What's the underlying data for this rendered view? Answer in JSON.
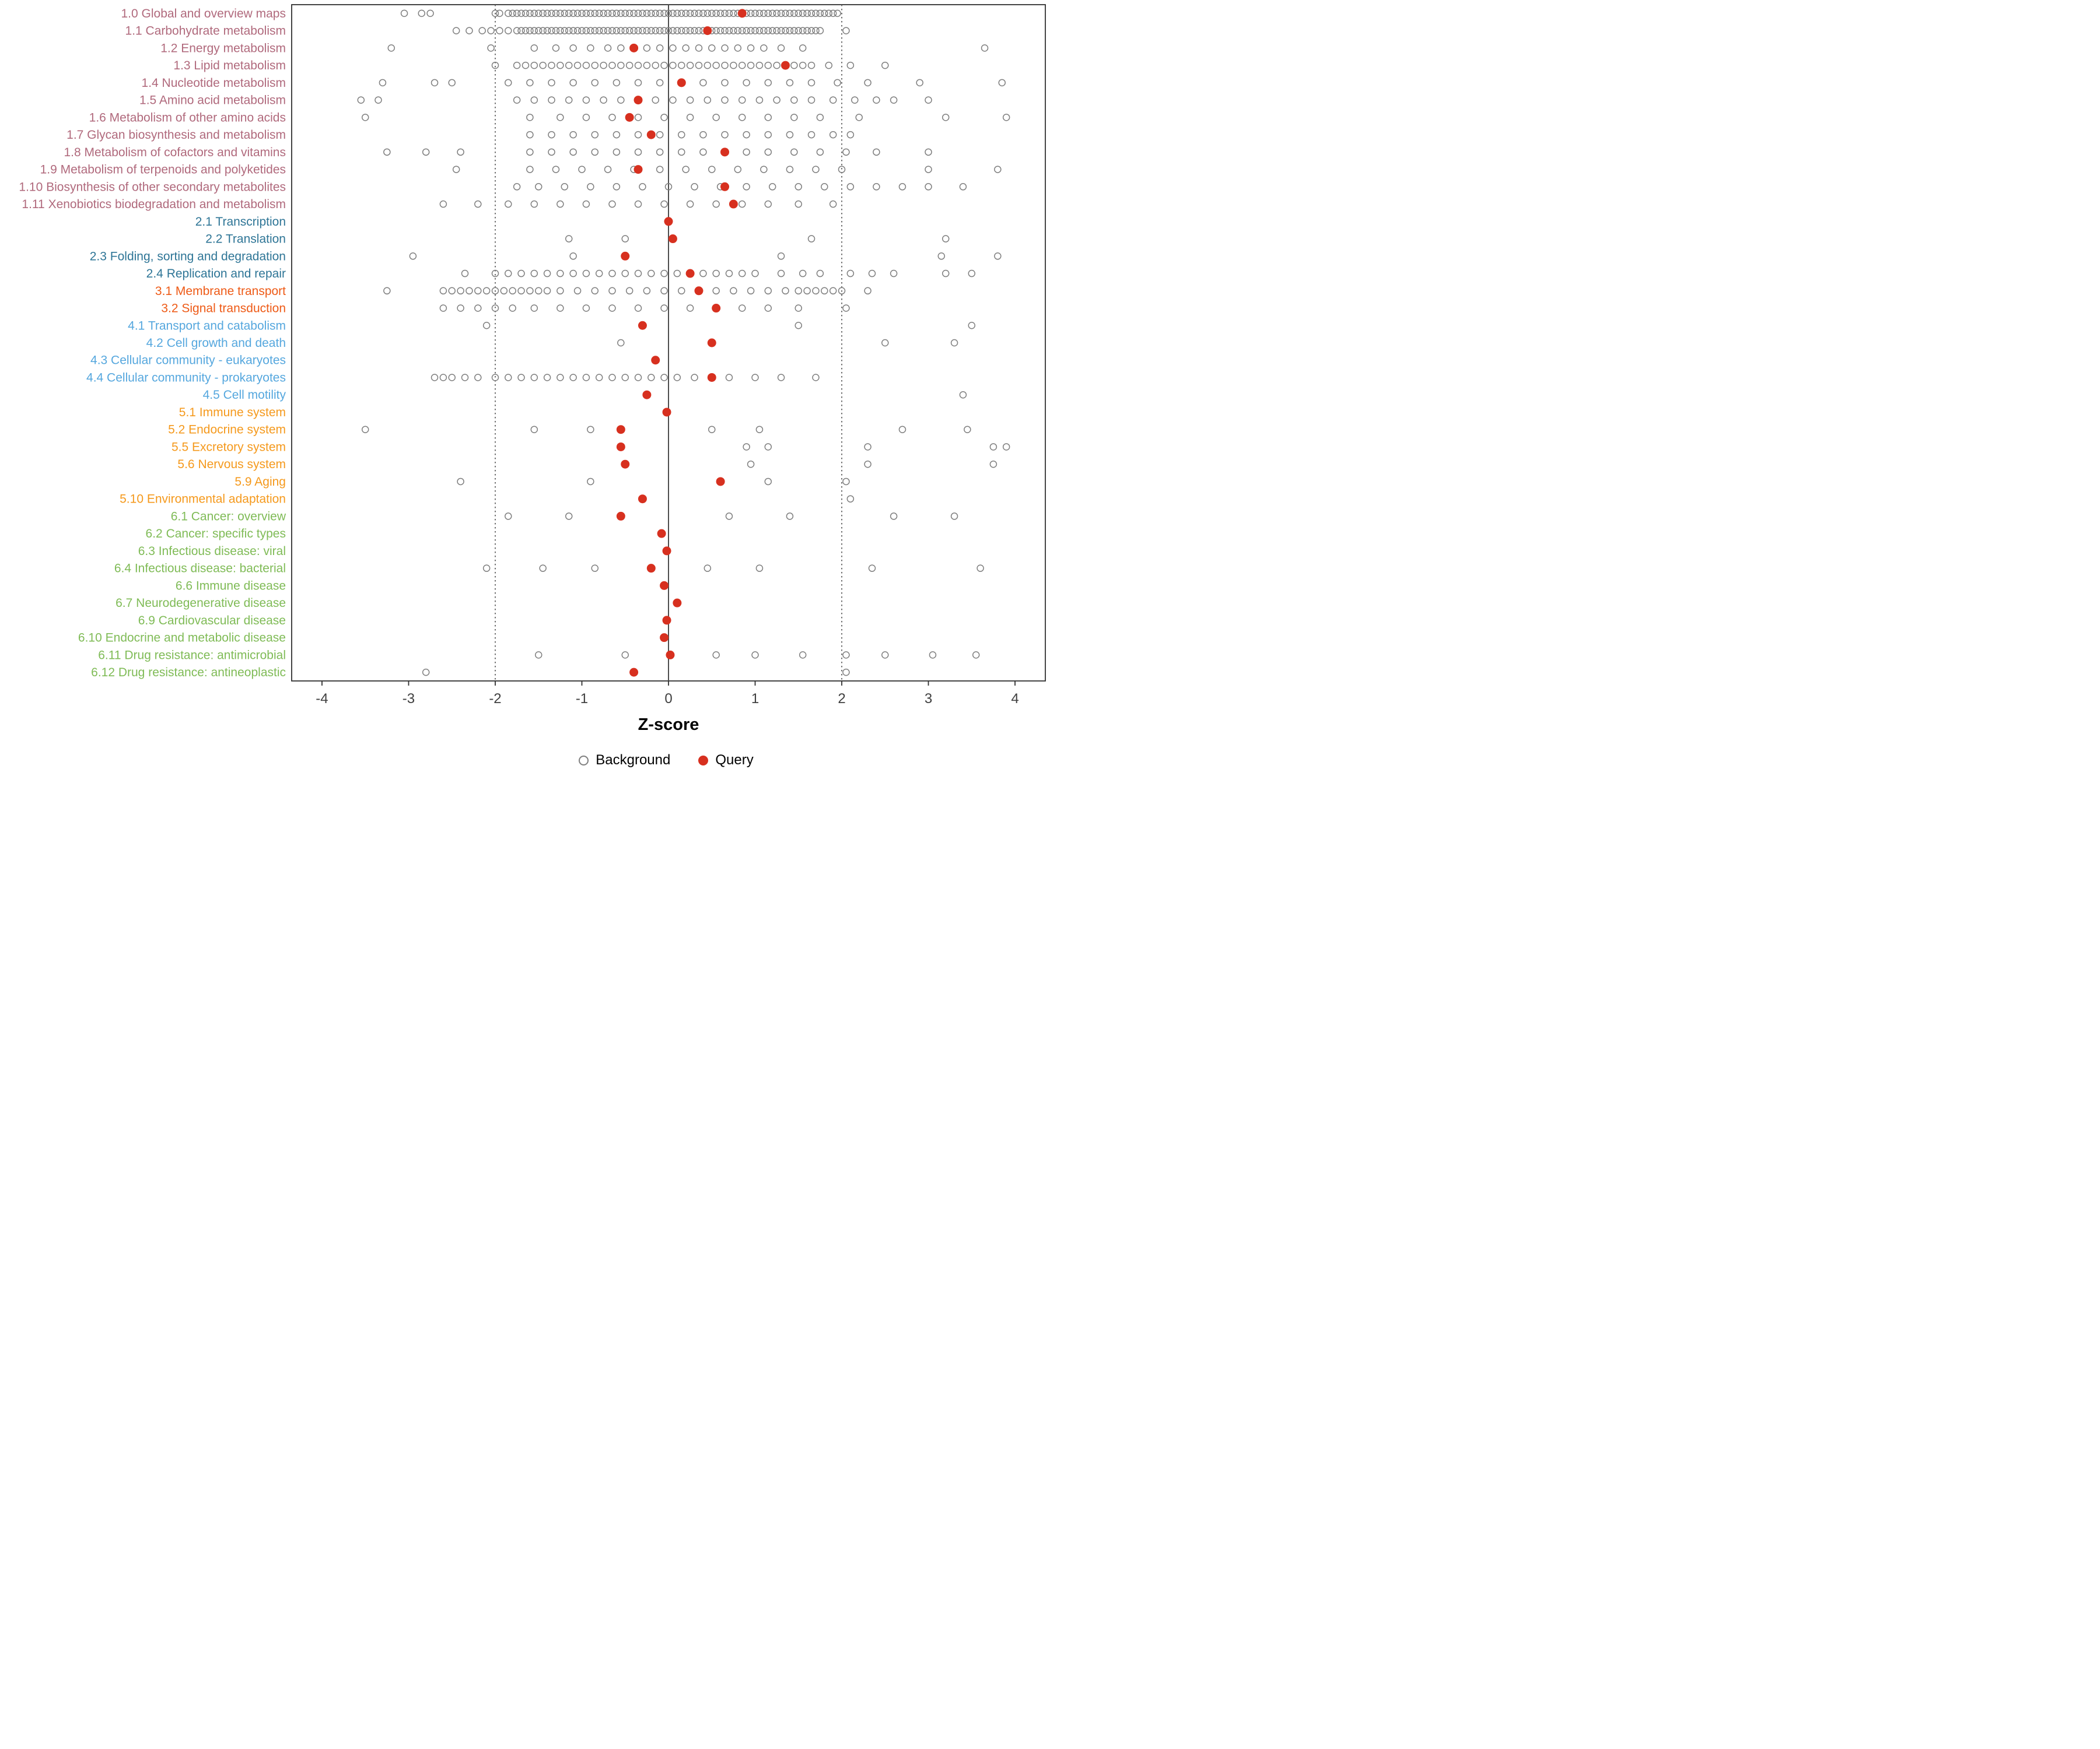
{
  "chart_data": {
    "type": "scatter",
    "title": "",
    "xlabel": "Z-score",
    "xlim": [
      -4.35,
      4.35
    ],
    "x_ticks": [
      -4,
      -3,
      -2,
      -1,
      0,
      1,
      2,
      3,
      4
    ],
    "grid": "off",
    "legend_position": "bottom",
    "reference_lines": {
      "solid": [
        0
      ],
      "dotted": [
        -2,
        2
      ]
    },
    "legend": [
      {
        "label": "Background",
        "style": "open"
      },
      {
        "label": "Query",
        "style": "filled"
      }
    ],
    "colors": {
      "background_stroke": "#7f7f7f",
      "query_fill": "#d7301f",
      "panel_border": "#2f2f2f",
      "reference_line": "#4d4d4d",
      "axis_text": "#404040"
    },
    "group_colors": {
      "1": "#b0697c",
      "2": "#2e7596",
      "3": "#ee5a16",
      "4": "#55a7de",
      "5": "#f5991c",
      "6": "#7fbb56"
    },
    "rows": [
      {
        "label": "1.0 Global and overview maps",
        "group": "1",
        "query": 0.85,
        "background": [
          -3.05,
          -2.85,
          -2.75,
          -2.0,
          -1.95,
          -1.85,
          -1.8,
          -1.75,
          -1.7,
          {
            "from": -1.65,
            "to": 1.95,
            "step": 0.05
          }
        ]
      },
      {
        "label": "1.1 Carbohydrate metabolism",
        "group": "1",
        "query": 0.45,
        "background": [
          -2.45,
          -2.3,
          -2.15,
          -2.05,
          -1.95,
          -1.85,
          {
            "from": -1.75,
            "to": 1.65,
            "step": 0.05
          },
          1.7,
          1.75,
          2.05
        ]
      },
      {
        "label": "1.2 Energy metabolism",
        "group": "1",
        "query": -0.4,
        "background": [
          -3.2,
          -2.05,
          -1.55,
          -1.3,
          -1.1,
          -0.9,
          -0.7,
          -0.55,
          -0.4,
          -0.25,
          -0.1,
          0.05,
          0.2,
          0.35,
          0.5,
          0.65,
          0.8,
          0.95,
          1.1,
          1.3,
          1.55,
          3.65
        ]
      },
      {
        "label": "1.3 Lipid metabolism",
        "group": "1",
        "query": 1.35,
        "background": [
          -2.0,
          {
            "from": -1.75,
            "to": 1.65,
            "step": 0.1
          },
          1.85,
          2.1,
          2.5
        ]
      },
      {
        "label": "1.4 Nucleotide metabolism",
        "group": "1",
        "query": 0.15,
        "background": [
          -3.3,
          -2.7,
          -2.5,
          -1.85,
          -1.6,
          -1.35,
          -1.1,
          -0.85,
          -0.6,
          -0.35,
          -0.1,
          0.15,
          0.4,
          0.65,
          0.9,
          1.15,
          1.4,
          1.65,
          1.95,
          2.3,
          2.9,
          3.85
        ]
      },
      {
        "label": "1.5 Amino acid metabolism",
        "group": "1",
        "query": -0.35,
        "background": [
          -3.55,
          -3.35,
          -1.75,
          -1.55,
          -1.35,
          -1.15,
          -0.95,
          -0.75,
          -0.55,
          -0.35,
          -0.15,
          0.05,
          0.25,
          0.45,
          0.65,
          0.85,
          1.05,
          1.25,
          1.45,
          1.65,
          1.9,
          2.15,
          2.4,
          2.6,
          3.0
        ]
      },
      {
        "label": "1.6 Metabolism of other amino acids",
        "group": "1",
        "query": -0.45,
        "background": [
          -3.5,
          -1.6,
          -1.25,
          -0.95,
          -0.65,
          -0.35,
          -0.05,
          0.25,
          0.55,
          0.85,
          1.15,
          1.45,
          1.75,
          2.2,
          3.2,
          3.9
        ]
      },
      {
        "label": "1.7 Glycan biosynthesis and metabolism",
        "group": "1",
        "query": -0.2,
        "background": [
          -1.6,
          -1.35,
          -1.1,
          -0.85,
          -0.6,
          -0.35,
          -0.1,
          0.15,
          0.4,
          0.65,
          0.9,
          1.15,
          1.4,
          1.65,
          1.9,
          2.1
        ]
      },
      {
        "label": "1.8 Metabolism of cofactors and vitamins",
        "group": "1",
        "query": 0.65,
        "background": [
          -3.25,
          -2.8,
          -2.4,
          -1.6,
          -1.35,
          -1.1,
          -0.85,
          -0.6,
          -0.35,
          -0.1,
          0.15,
          0.4,
          0.65,
          0.9,
          1.15,
          1.45,
          1.75,
          2.05,
          2.4,
          3.0
        ]
      },
      {
        "label": "1.9 Metabolism of terpenoids and polyketides",
        "group": "1",
        "query": -0.35,
        "background": [
          -2.45,
          -1.6,
          -1.3,
          -1.0,
          -0.7,
          -0.4,
          -0.1,
          0.2,
          0.5,
          0.8,
          1.1,
          1.4,
          1.7,
          2.0,
          3.0,
          3.8
        ]
      },
      {
        "label": "1.10 Biosynthesis of other secondary metabolites",
        "group": "1",
        "query": 0.65,
        "background": [
          -1.75,
          -1.5,
          -1.2,
          -0.9,
          -0.6,
          -0.3,
          0.0,
          0.3,
          0.6,
          0.9,
          1.2,
          1.5,
          1.8,
          2.1,
          2.4,
          2.7,
          3.0,
          3.4
        ]
      },
      {
        "label": "1.11 Xenobiotics biodegradation and metabolism",
        "group": "1",
        "query": 0.75,
        "background": [
          -2.6,
          -2.2,
          -1.85,
          -1.55,
          -1.25,
          -0.95,
          -0.65,
          -0.35,
          -0.05,
          0.25,
          0.55,
          0.85,
          1.15,
          1.5,
          1.9
        ]
      },
      {
        "label": "2.1 Transcription",
        "group": "2",
        "query": 0.0,
        "background": []
      },
      {
        "label": "2.2 Translation",
        "group": "2",
        "query": 0.05,
        "background": [
          -1.15,
          -0.5,
          1.65,
          3.2
        ]
      },
      {
        "label": "2.3 Folding, sorting and degradation",
        "group": "2",
        "query": -0.5,
        "background": [
          -2.95,
          -1.1,
          1.3,
          3.15,
          3.8
        ]
      },
      {
        "label": "2.4 Replication and repair",
        "group": "2",
        "query": 0.25,
        "background": [
          -2.35,
          -2.0,
          -1.85,
          -1.7,
          -1.55,
          -1.4,
          -1.25,
          -1.1,
          -0.95,
          -0.8,
          -0.65,
          -0.5,
          -0.35,
          -0.2,
          -0.05,
          0.1,
          0.25,
          0.4,
          0.55,
          0.7,
          0.85,
          1.0,
          1.3,
          1.55,
          1.75,
          2.1,
          2.35,
          2.6,
          3.2,
          3.5
        ]
      },
      {
        "label": "3.1 Membrane transport",
        "group": "3",
        "query": 0.35,
        "background": [
          -3.25,
          -2.6,
          -2.5,
          -2.4,
          -2.3,
          -2.2,
          -2.1,
          -2.0,
          -1.9,
          -1.8,
          -1.7,
          -1.6,
          -1.5,
          -1.4,
          -1.25,
          -1.05,
          -0.85,
          -0.65,
          -0.45,
          -0.25,
          -0.05,
          0.15,
          0.35,
          0.55,
          0.75,
          0.95,
          1.15,
          1.35,
          1.5,
          1.6,
          1.7,
          1.8,
          1.9,
          2.0,
          2.3
        ]
      },
      {
        "label": "3.2 Signal transduction",
        "group": "3",
        "query": 0.55,
        "background": [
          -2.6,
          -2.4,
          -2.2,
          -2.0,
          -1.8,
          -1.55,
          -1.25,
          -0.95,
          -0.65,
          -0.35,
          -0.05,
          0.25,
          0.55,
          0.85,
          1.15,
          1.5,
          2.05
        ]
      },
      {
        "label": "4.1 Transport and catabolism",
        "group": "4",
        "query": -0.3,
        "background": [
          -2.1,
          1.5,
          3.5
        ]
      },
      {
        "label": "4.2 Cell growth and death",
        "group": "4",
        "query": 0.5,
        "background": [
          -0.55,
          2.5,
          3.3
        ]
      },
      {
        "label": "4.3 Cellular community - eukaryotes",
        "group": "4",
        "query": -0.15,
        "background": []
      },
      {
        "label": "4.4 Cellular community - prokaryotes",
        "group": "4",
        "query": 0.5,
        "background": [
          -2.7,
          -2.6,
          -2.5,
          -2.35,
          -2.2,
          -2.0,
          -1.85,
          -1.7,
          -1.55,
          -1.4,
          -1.25,
          -1.1,
          -0.95,
          -0.8,
          -0.65,
          -0.5,
          -0.35,
          -0.2,
          -0.05,
          0.1,
          0.3,
          0.7,
          1.0,
          1.3,
          1.7
        ]
      },
      {
        "label": "4.5 Cell motility",
        "group": "4",
        "query": -0.25,
        "background": [
          3.4
        ]
      },
      {
        "label": "5.1 Immune system",
        "group": "5",
        "query": -0.02,
        "background": []
      },
      {
        "label": "5.2 Endocrine system",
        "group": "5",
        "query": -0.55,
        "background": [
          -3.5,
          -1.55,
          -0.9,
          0.5,
          1.05,
          2.7,
          3.45
        ]
      },
      {
        "label": "5.5 Excretory system",
        "group": "5",
        "query": -0.55,
        "background": [
          0.9,
          1.15,
          2.3,
          3.75,
          3.9
        ]
      },
      {
        "label": "5.6 Nervous system",
        "group": "5",
        "query": -0.5,
        "background": [
          0.95,
          2.3,
          3.75
        ]
      },
      {
        "label": "5.9 Aging",
        "group": "5",
        "query": 0.6,
        "background": [
          -2.4,
          -0.9,
          1.15,
          2.05
        ]
      },
      {
        "label": "5.10 Environmental adaptation",
        "group": "5",
        "query": -0.3,
        "background": [
          2.1
        ]
      },
      {
        "label": "6.1 Cancer: overview",
        "group": "6",
        "query": -0.55,
        "background": [
          -1.85,
          -1.15,
          0.7,
          1.4,
          2.6,
          3.3
        ]
      },
      {
        "label": "6.2 Cancer: specific types",
        "group": "6",
        "query": -0.08,
        "background": []
      },
      {
        "label": "6.3 Infectious disease: viral",
        "group": "6",
        "query": -0.02,
        "background": []
      },
      {
        "label": "6.4 Infectious disease: bacterial",
        "group": "6",
        "query": -0.2,
        "background": [
          -2.1,
          -1.45,
          -0.85,
          0.45,
          1.05,
          2.35,
          3.6
        ]
      },
      {
        "label": "6.6 Immune disease",
        "group": "6",
        "query": -0.05,
        "background": []
      },
      {
        "label": "6.7 Neurodegenerative disease",
        "group": "6",
        "query": 0.1,
        "background": []
      },
      {
        "label": "6.9 Cardiovascular disease",
        "group": "6",
        "query": -0.02,
        "background": []
      },
      {
        "label": "6.10 Endocrine and metabolic disease",
        "group": "6",
        "query": -0.05,
        "background": []
      },
      {
        "label": "6.11 Drug resistance: antimicrobial",
        "group": "6",
        "query": 0.02,
        "background": [
          -1.5,
          -0.5,
          0.55,
          1.0,
          1.55,
          2.05,
          2.5,
          3.05,
          3.55
        ]
      },
      {
        "label": "6.12 Drug resistance: antineoplastic",
        "group": "6",
        "query": -0.4,
        "background": [
          -2.8,
          2.05
        ]
      }
    ]
  }
}
